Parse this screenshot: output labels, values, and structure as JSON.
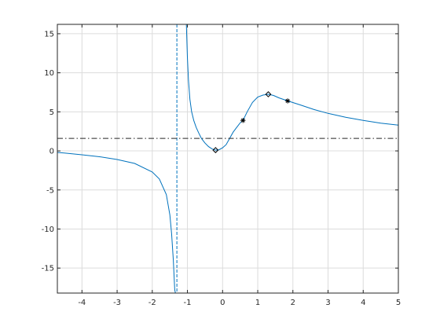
{
  "chart_data": {
    "type": "line",
    "title": "",
    "xlabel": "",
    "ylabel": "",
    "xlim": [
      -4.7,
      5
    ],
    "ylim": [
      -18.2,
      16.2
    ],
    "grid": true,
    "x_ticks": [
      -4,
      -3,
      -2,
      -1,
      0,
      1,
      2,
      3,
      4,
      5
    ],
    "x_tick_labels": [
      "-4",
      "-3",
      "-2",
      "-1",
      "0",
      "1",
      "2",
      "3",
      "4",
      "5"
    ],
    "y_ticks": [
      -15,
      -10,
      -5,
      0,
      5,
      10,
      15
    ],
    "y_tick_labels": [
      "-15",
      "-10",
      "-5",
      "0",
      "5",
      "10",
      "15"
    ],
    "colors": {
      "curve": "#0072bd",
      "asymptote": "#0072bd",
      "horizontal_asymptote": "#262626",
      "markers": "#000000"
    },
    "series": [
      {
        "style": "solid-curve",
        "segments": [
          {
            "x": [
              -4.7,
              -4.5,
              -4.0,
              -3.5,
              -3.0,
              -2.5,
              -2.0,
              -1.8,
              -1.6,
              -1.5,
              -1.45,
              -1.4,
              -1.36,
              -1.34
            ],
            "y": [
              -0.2,
              -0.28,
              -0.5,
              -0.75,
              -1.1,
              -1.6,
              -2.7,
              -3.6,
              -5.6,
              -8.2,
              -10.6,
              -14.0,
              -17.8,
              -18.2
            ]
          },
          {
            "x": [
              -1.03,
              -1.0,
              -0.97,
              -0.93,
              -0.88,
              -0.82,
              -0.75,
              -0.68,
              -0.6,
              -0.5,
              -0.4,
              -0.3,
              -0.2,
              -0.1,
              0.0,
              0.1,
              0.2,
              0.3,
              0.4,
              0.5,
              0.58,
              0.7,
              0.85,
              1.0,
              1.15,
              1.3,
              1.45,
              1.6,
              1.85,
              2.2,
              2.6,
              3.0,
              3.5,
              4.0,
              4.5,
              5.0
            ],
            "y": [
              16.2,
              12.0,
              9.0,
              6.6,
              5.0,
              3.9,
              3.0,
              2.3,
              1.6,
              1.0,
              0.55,
              0.25,
              0.1,
              0.15,
              0.4,
              0.8,
              1.6,
              2.4,
              3.0,
              3.6,
              3.9,
              5.0,
              6.2,
              6.9,
              7.15,
              7.25,
              7.1,
              6.8,
              6.4,
              5.9,
              5.3,
              4.8,
              4.3,
              3.9,
              3.55,
              3.3
            ]
          }
        ]
      },
      {
        "style": "vertical-asymptote",
        "x": -1.3
      },
      {
        "style": "horizontal-asymptote",
        "y": 1.6
      },
      {
        "style": "diamond-markers",
        "points": [
          {
            "x": -0.2,
            "y": 0.1
          },
          {
            "x": 1.3,
            "y": 7.25
          }
        ]
      },
      {
        "style": "star-markers",
        "points": [
          {
            "x": 0.58,
            "y": 3.9
          },
          {
            "x": 1.85,
            "y": 6.4
          }
        ]
      }
    ]
  }
}
